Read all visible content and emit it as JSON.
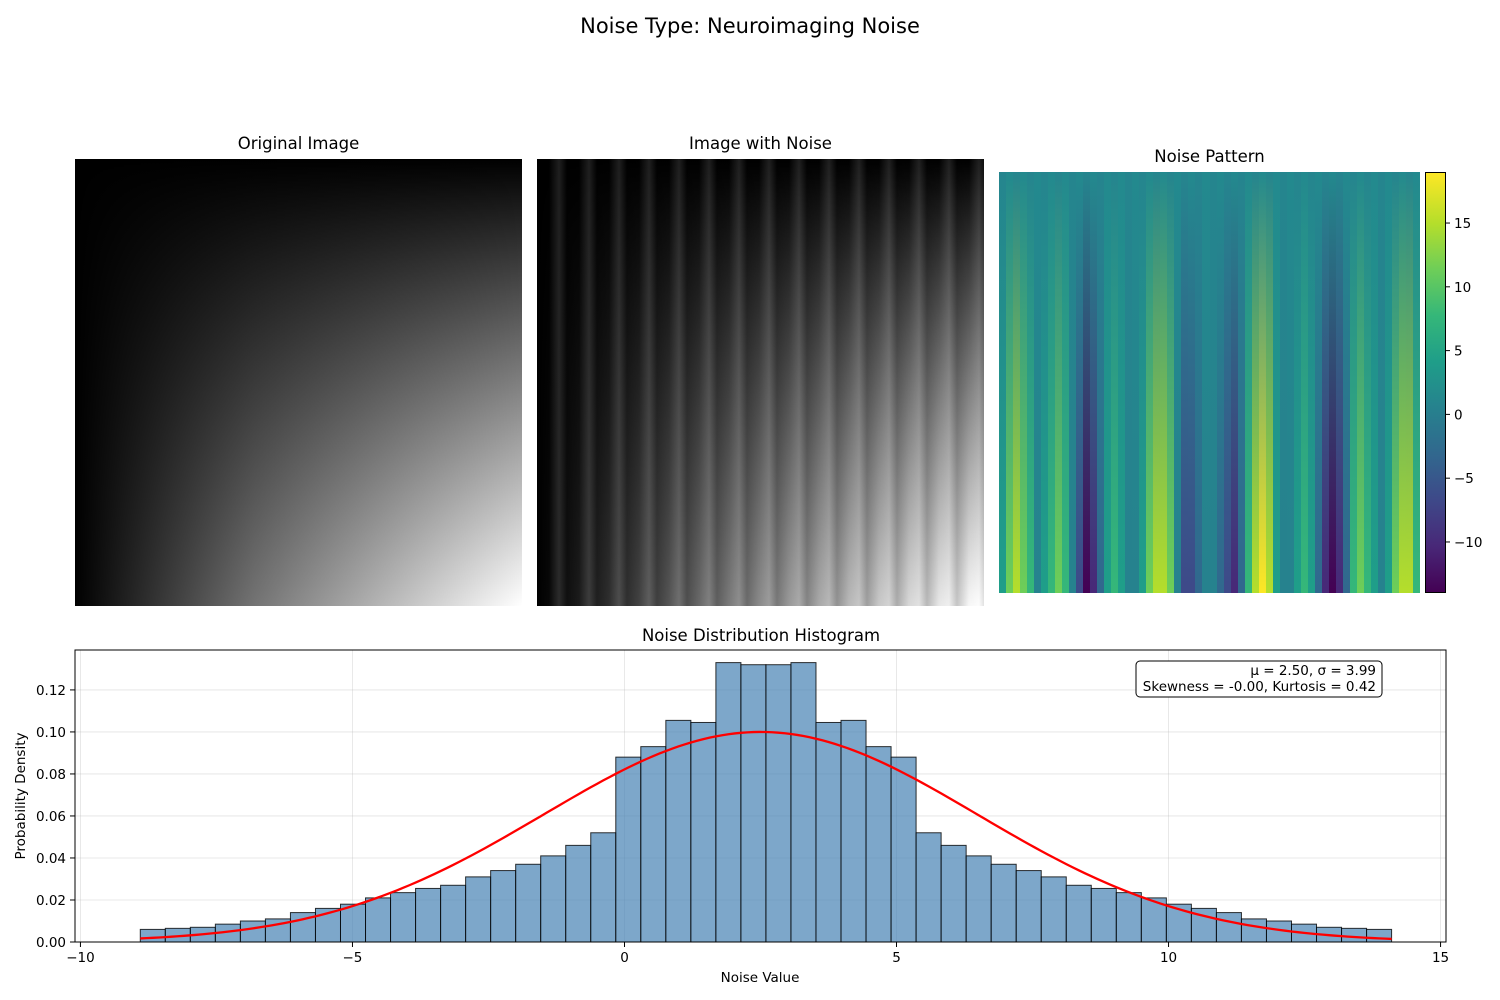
{
  "figure": {
    "suptitle": "Noise Type: Neuroimaging Noise"
  },
  "panels": {
    "original_title": "Original Image",
    "noisy_title": "Image with Noise",
    "noise_title": "Noise Pattern"
  },
  "colorbar": {
    "ticks": [
      "15",
      "10",
      "5",
      "0",
      "−5",
      "−10"
    ],
    "tick_values": [
      15,
      10,
      5,
      0,
      -5,
      -10
    ],
    "range": [
      -14,
      19
    ],
    "colormap": "viridis"
  },
  "chart_data": {
    "type": "bar",
    "title": "Noise Distribution Histogram",
    "xlabel": "Noise Value",
    "ylabel": "Probability Density",
    "xlim": [
      -10.1,
      15.1
    ],
    "ylim": [
      0,
      0.139
    ],
    "xticks": [
      -10,
      -5,
      0,
      5,
      10,
      15
    ],
    "xtick_labels": [
      "−10",
      "−5",
      "0",
      "5",
      "10",
      "15"
    ],
    "yticks": [
      0.0,
      0.02,
      0.04,
      0.06,
      0.08,
      0.1,
      0.12
    ],
    "ytick_labels": [
      "0.00",
      "0.02",
      "0.04",
      "0.06",
      "0.08",
      "0.10",
      "0.12"
    ],
    "grid": true,
    "bin_edges_start": -8.9,
    "bin_width": 0.46,
    "bar_color": "#4682b4",
    "values": [
      0.006,
      0.0065,
      0.007,
      0.0085,
      0.01,
      0.011,
      0.014,
      0.016,
      0.018,
      0.021,
      0.0235,
      0.0255,
      0.027,
      0.031,
      0.034,
      0.037,
      0.041,
      0.046,
      0.052,
      0.088,
      0.093,
      0.1055,
      0.1045,
      0.133,
      0.132,
      0.132,
      0.133,
      0.1045,
      0.1055,
      0.093,
      0.088,
      0.052,
      0.046,
      0.041,
      0.037,
      0.034,
      0.031,
      0.027,
      0.0255,
      0.0235,
      0.021,
      0.018,
      0.016,
      0.014,
      0.011,
      0.01,
      0.0085,
      0.007,
      0.0065,
      0.006
    ],
    "fit_curve": {
      "type": "normal_pdf",
      "mu": 2.5,
      "sigma": 3.99,
      "color": "#ff0000"
    },
    "stats_box": {
      "line1": "μ = 2.50, σ = 3.99",
      "line2": "Skewness = -0.00, Kurtosis = 0.42",
      "placement": "top-right"
    }
  }
}
